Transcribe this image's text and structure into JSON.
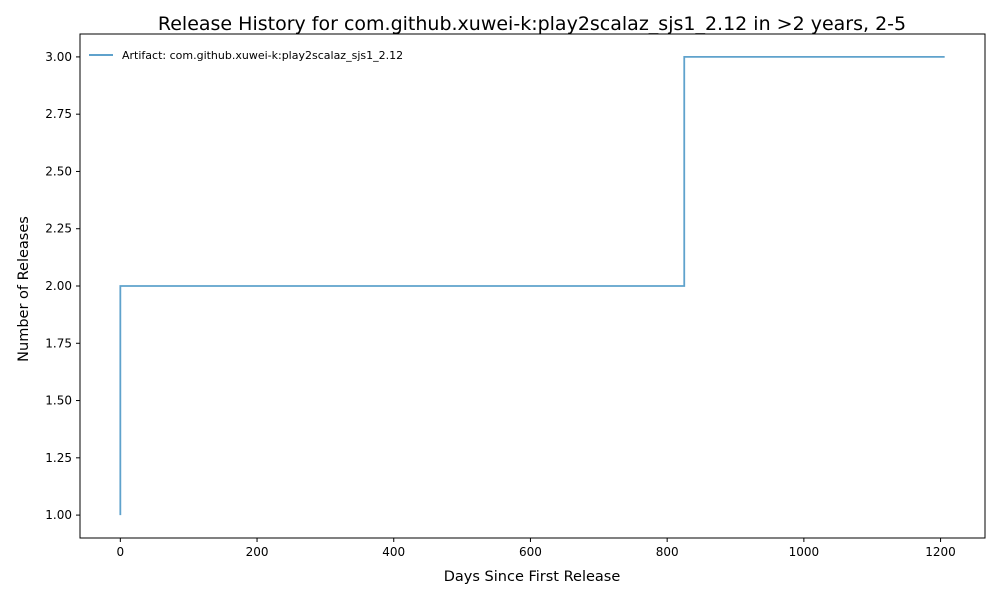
{
  "chart_data": {
    "type": "line",
    "step": "post",
    "title": "Release History for com.github.xuwei-k:play2scalaz_sjs1_2.12 in >2 years, 2-5",
    "xlabel": "Days Since First Release",
    "ylabel": "Number of Releases",
    "xlim": [
      -59,
      1265
    ],
    "ylim": [
      0.9,
      3.1
    ],
    "xticks": [
      0,
      200,
      400,
      600,
      800,
      1000,
      1200
    ],
    "yticks": [
      1.0,
      1.25,
      1.5,
      1.75,
      2.0,
      2.25,
      2.5,
      2.75,
      3.0
    ],
    "xtick_labels": [
      "0",
      "200",
      "400",
      "600",
      "800",
      "1000",
      "1200"
    ],
    "ytick_labels": [
      "1.00",
      "1.25",
      "1.50",
      "1.75",
      "2.00",
      "2.25",
      "2.50",
      "2.75",
      "3.00"
    ],
    "grid": false,
    "legend_position": "top-left",
    "series": [
      {
        "name": "Artifact: com.github.xuwei-k:play2scalaz_sjs1_2.12",
        "color": "#5fa2cc",
        "x": [
          0,
          0,
          825,
          1206
        ],
        "y": [
          1,
          2,
          3,
          3
        ]
      }
    ]
  }
}
